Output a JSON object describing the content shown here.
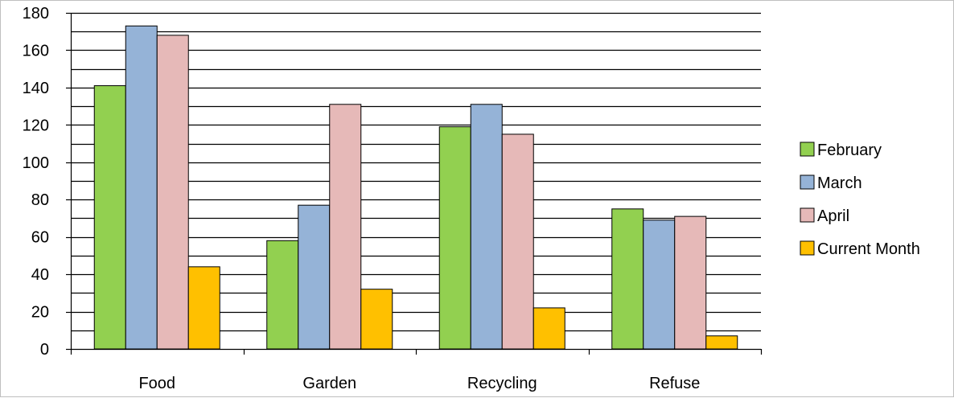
{
  "chart_data": {
    "type": "bar",
    "categories": [
      "Food",
      "Garden",
      "Recycling",
      "Refuse"
    ],
    "series": [
      {
        "name": "February",
        "color": "#92d050",
        "values": [
          141,
          58,
          119,
          75
        ]
      },
      {
        "name": "March",
        "color": "#95b3d7",
        "values": [
          173,
          77,
          131,
          69
        ]
      },
      {
        "name": "April",
        "color": "#e6b9b8",
        "values": [
          168,
          131,
          115,
          71
        ]
      },
      {
        "name": "Current Month",
        "color": "#ffc000",
        "values": [
          44,
          32,
          22,
          7
        ]
      }
    ],
    "ylim": [
      0,
      180
    ],
    "yticks": [
      0,
      20,
      40,
      60,
      80,
      100,
      120,
      140,
      160,
      180
    ],
    "ytick_labels": [
      "0",
      "20",
      "40",
      "60",
      "80",
      "100",
      "120",
      "140",
      "160",
      "180"
    ],
    "grid": "horizontal major and minor lines",
    "legend": "right"
  }
}
